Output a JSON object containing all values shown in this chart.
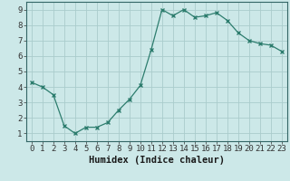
{
  "x": [
    0,
    1,
    2,
    3,
    4,
    5,
    6,
    7,
    8,
    9,
    10,
    11,
    12,
    13,
    14,
    15,
    16,
    17,
    18,
    19,
    20,
    21,
    22,
    23
  ],
  "y": [
    4.3,
    4.0,
    3.5,
    1.5,
    1.0,
    1.4,
    1.4,
    1.7,
    2.5,
    3.2,
    4.1,
    6.4,
    9.0,
    8.6,
    9.0,
    8.5,
    8.6,
    8.8,
    8.3,
    7.5,
    7.0,
    6.8,
    6.7,
    6.3
  ],
  "line_color": "#2d7d6e",
  "marker_color": "#2d7d6e",
  "bg_color": "#cce8e8",
  "grid_color": "#aacccc",
  "xlabel": "Humidex (Indice chaleur)",
  "xlim": [
    -0.5,
    23.5
  ],
  "ylim": [
    0.5,
    9.5
  ],
  "xticks": [
    0,
    1,
    2,
    3,
    4,
    5,
    6,
    7,
    8,
    9,
    10,
    11,
    12,
    13,
    14,
    15,
    16,
    17,
    18,
    19,
    20,
    21,
    22,
    23
  ],
  "yticks": [
    1,
    2,
    3,
    4,
    5,
    6,
    7,
    8,
    9
  ],
  "tick_fontsize": 6.5,
  "xlabel_fontsize": 7.5,
  "spine_color": "#336666"
}
